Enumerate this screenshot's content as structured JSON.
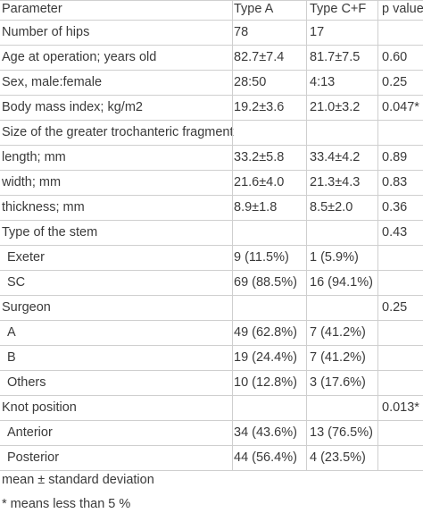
{
  "table": {
    "headers": [
      "Parameter",
      "Type A",
      "Type C+F",
      "p value"
    ],
    "rows": [
      {
        "label": "Number of hips",
        "a": "78",
        "cf": "17",
        "p": "",
        "indent": false
      },
      {
        "label": "Age at operation; years old",
        "a": "82.7±7.4",
        "cf": "81.7±7.5",
        "p": "0.60",
        "indent": false
      },
      {
        "label": "Sex, male:female",
        "a": "28:50",
        "cf": "4:13",
        "p": "0.25",
        "indent": false
      },
      {
        "label": "Body mass index; kg/m2",
        "a": "19.2±3.6",
        "cf": "21.0±3.2",
        "p": "0.047*",
        "indent": false
      },
      {
        "label": "Size of the greater trochanteric fragment",
        "a": "",
        "cf": "",
        "p": "",
        "indent": false
      },
      {
        "label": "length; mm",
        "a": "33.2±5.8",
        "cf": "33.4±4.2",
        "p": "0.89",
        "indent": false
      },
      {
        "label": "width; mm",
        "a": "21.6±4.0",
        "cf": "21.3±4.3",
        "p": "0.83",
        "indent": false
      },
      {
        "label": "thickness; mm",
        "a": "8.9±1.8",
        "cf": "8.5±2.0",
        "p": "0.36",
        "indent": false
      },
      {
        "label": "Type of the stem",
        "a": "",
        "cf": "",
        "p": "0.43",
        "indent": false
      },
      {
        "label": "Exeter",
        "a": "9 (11.5%)",
        "cf": "1 (5.9%)",
        "p": "",
        "indent": true
      },
      {
        "label": "SC",
        "a": "69 (88.5%)",
        "cf": "16 (94.1%)",
        "p": "",
        "indent": true
      },
      {
        "label": "Surgeon",
        "a": "",
        "cf": "",
        "p": "0.25",
        "indent": false
      },
      {
        "label": "A",
        "a": "49 (62.8%)",
        "cf": "7 (41.2%)",
        "p": "",
        "indent": true
      },
      {
        "label": "B",
        "a": "19 (24.4%)",
        "cf": "7 (41.2%)",
        "p": "",
        "indent": true
      },
      {
        "label": "Others",
        "a": "10 (12.8%)",
        "cf": "3 (17.6%)",
        "p": "",
        "indent": true
      },
      {
        "label": "Knot position",
        "a": "",
        "cf": "",
        "p": "0.013*",
        "indent": false
      },
      {
        "label": "Anterior",
        "a": "34 (43.6%)",
        "cf": "13 (76.5%)",
        "p": "",
        "indent": true
      },
      {
        "label": "Posterior",
        "a": "44 (56.4%)",
        "cf": "4 (23.5%)",
        "p": "",
        "indent": true
      }
    ]
  },
  "notes": [
    "mean ± standard deviation",
    "* means less than 5 %"
  ]
}
